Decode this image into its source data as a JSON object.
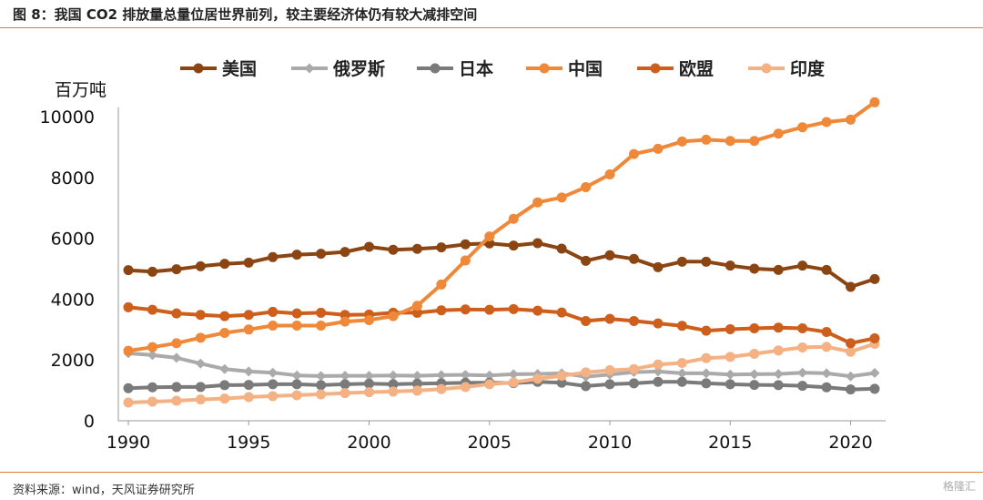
{
  "header": {
    "title": "图 8：我国 CO2 排放量总量位居世界前列，较主要经济体仍有较大减排空间"
  },
  "footer": {
    "source": "资料来源：wind，天风证券研究所",
    "watermark": "格隆汇"
  },
  "chart_data": {
    "type": "line",
    "title": "",
    "ylabel": "百万吨",
    "xlabel": "",
    "ylim": [
      0,
      10000
    ],
    "xlim": [
      1990,
      2021
    ],
    "yticks": [
      0,
      2000,
      4000,
      6000,
      8000,
      10000
    ],
    "xticks": [
      1990,
      1995,
      2000,
      2005,
      2010,
      2015,
      2020
    ],
    "grid": false,
    "legend_position": "top",
    "x": [
      1990,
      1991,
      1992,
      1993,
      1994,
      1995,
      1996,
      1997,
      1998,
      1999,
      2000,
      2001,
      2002,
      2003,
      2004,
      2005,
      2006,
      2007,
      2008,
      2009,
      2010,
      2011,
      2012,
      2013,
      2014,
      2015,
      2016,
      2017,
      2018,
      2019,
      2020,
      2021
    ],
    "series": [
      {
        "name": "美国",
        "color": "#8b4513",
        "marker": "circle",
        "values": [
          4950,
          4900,
          4980,
          5080,
          5160,
          5200,
          5380,
          5460,
          5490,
          5550,
          5720,
          5620,
          5650,
          5700,
          5800,
          5830,
          5760,
          5840,
          5660,
          5260,
          5440,
          5320,
          5050,
          5230,
          5230,
          5100,
          5000,
          4960,
          5100,
          4960,
          4400,
          4660
        ]
      },
      {
        "name": "俄罗斯",
        "color": "#aaaaaa",
        "marker": "diamond",
        "values": [
          2220,
          2160,
          2070,
          1880,
          1700,
          1620,
          1580,
          1490,
          1470,
          1480,
          1480,
          1490,
          1480,
          1500,
          1510,
          1490,
          1530,
          1540,
          1560,
          1450,
          1520,
          1600,
          1620,
          1560,
          1560,
          1520,
          1530,
          1540,
          1580,
          1560,
          1460,
          1570
        ]
      },
      {
        "name": "日本",
        "color": "#7a7a7a",
        "marker": "circle",
        "values": [
          1070,
          1100,
          1110,
          1110,
          1170,
          1180,
          1200,
          1200,
          1170,
          1200,
          1220,
          1200,
          1220,
          1230,
          1250,
          1250,
          1240,
          1280,
          1250,
          1140,
          1200,
          1230,
          1280,
          1280,
          1230,
          1200,
          1180,
          1170,
          1150,
          1100,
          1030,
          1050
        ]
      },
      {
        "name": "中国",
        "color": "#ef8838",
        "marker": "circle",
        "values": [
          2300,
          2420,
          2550,
          2730,
          2890,
          3000,
          3130,
          3130,
          3130,
          3260,
          3310,
          3440,
          3780,
          4480,
          5270,
          6060,
          6640,
          7180,
          7340,
          7680,
          8100,
          8770,
          8940,
          9180,
          9240,
          9200,
          9200,
          9440,
          9650,
          9820,
          9900,
          10470
        ]
      },
      {
        "name": "欧盟",
        "color": "#cd5e1c",
        "marker": "circle",
        "values": [
          3730,
          3650,
          3530,
          3480,
          3440,
          3480,
          3580,
          3530,
          3550,
          3480,
          3490,
          3550,
          3550,
          3630,
          3660,
          3650,
          3670,
          3620,
          3560,
          3280,
          3350,
          3280,
          3200,
          3120,
          2960,
          3010,
          3040,
          3060,
          3040,
          2920,
          2550,
          2710
        ]
      },
      {
        "name": "印度",
        "color": "#f4b183",
        "marker": "circle",
        "values": [
          600,
          630,
          660,
          700,
          730,
          780,
          810,
          840,
          870,
          910,
          940,
          960,
          990,
          1040,
          1110,
          1200,
          1260,
          1380,
          1480,
          1590,
          1660,
          1700,
          1850,
          1900,
          2060,
          2100,
          2200,
          2310,
          2410,
          2430,
          2270,
          2530
        ]
      }
    ]
  }
}
